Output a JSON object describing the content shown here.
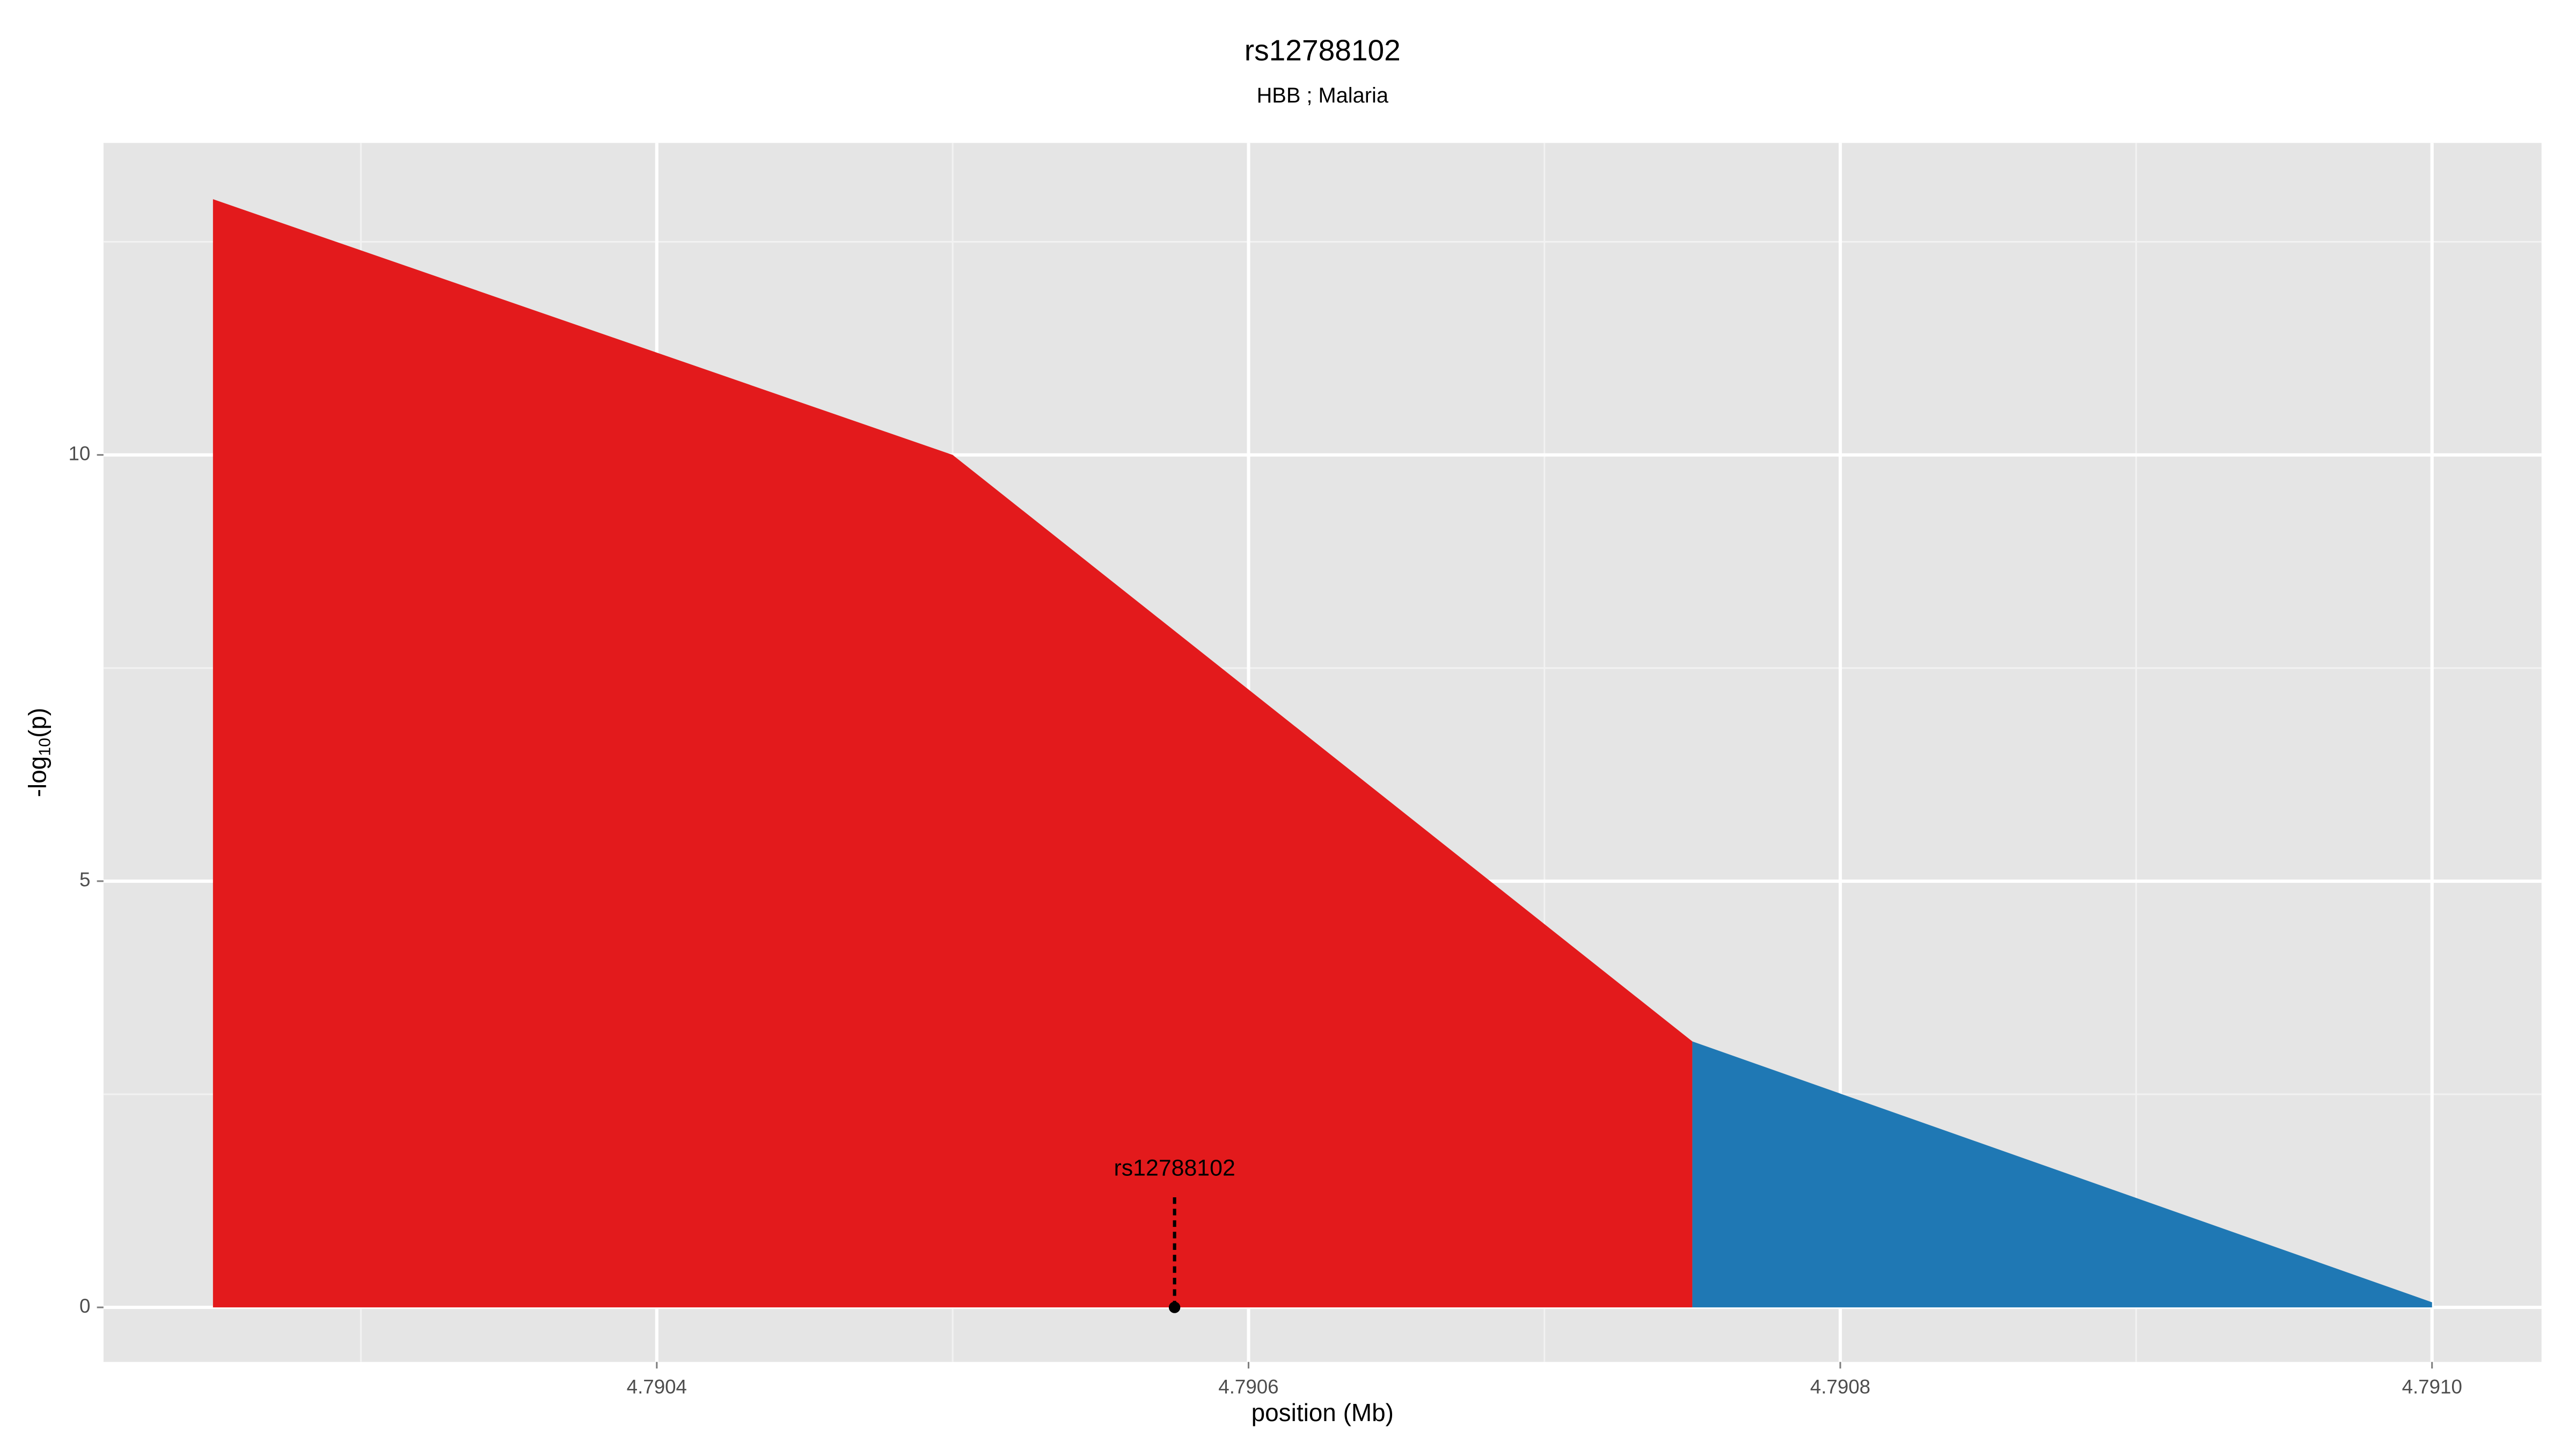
{
  "chart_data": {
    "type": "area",
    "title": "rs12788102",
    "subtitle": "HBB ; Malaria",
    "x_label": "position (Mb)",
    "y_label": [
      "-log",
      "10",
      "(p)"
    ],
    "series": [
      {
        "color": "#e31a1c",
        "x": [
          4.79025,
          4.7905,
          4.79075
        ],
        "values": [
          13,
          10,
          3.12
        ]
      },
      {
        "color": "#1f78b4",
        "x": [
          4.79075,
          4.791
        ],
        "values": [
          3.12,
          0.06
        ]
      }
    ],
    "annotation": {
      "text": "rs12788102",
      "x": 4.790575,
      "y": 0
    },
    "xlim": [
      4.790213,
      4.791037
    ],
    "ylim": [
      -0.64,
      13.66
    ],
    "xticks": [
      4.7904,
      4.7906,
      4.7908,
      {
        "value": 4.791,
        "label": "4.7910"
      }
    ],
    "minor_xticks": [
      4.7903,
      4.7905,
      4.7907,
      4.7909
    ],
    "yticks": [
      0,
      5,
      10
    ],
    "minor_yticks": [
      2.5,
      7.5,
      12.5
    ],
    "grid": true
  }
}
